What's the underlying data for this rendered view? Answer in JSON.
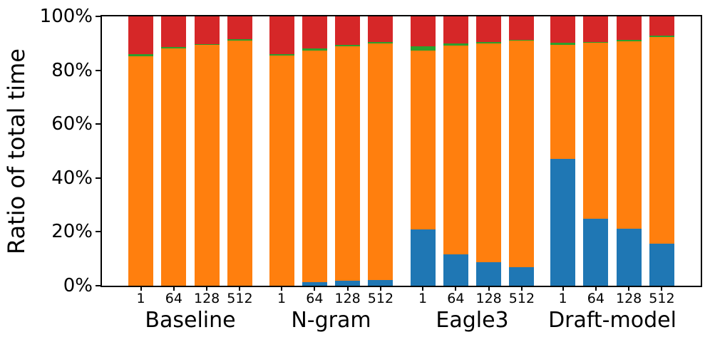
{
  "chart_data": {
    "type": "bar",
    "stacked": true,
    "title": "",
    "xlabel": "",
    "ylabel": "Ratio of total time",
    "ylim": [
      0,
      100
    ],
    "grid": false,
    "legend": false,
    "ytick_values": [
      0,
      20,
      40,
      60,
      80,
      100
    ],
    "ytick_labels": [
      "0%",
      "20%",
      "40%",
      "60%",
      "80%",
      "100%"
    ],
    "groups": [
      "Baseline",
      "N-gram",
      "Eagle3",
      "Draft-model"
    ],
    "bar_labels": [
      "1",
      "64",
      "128",
      "512"
    ],
    "series": [
      {
        "name": "blue-bottom-segment",
        "color": "#1f77b4",
        "values": [
          [
            0,
            0,
            0,
            0
          ],
          [
            0,
            1.3,
            1.9,
            2.0
          ],
          [
            21.0,
            11.7,
            8.7,
            7.0
          ],
          [
            47.0,
            24.8,
            21.3,
            15.5
          ]
        ]
      },
      {
        "name": "orange-middle-segment",
        "color": "#ff7f0e",
        "values": [
          [
            85.3,
            88.0,
            89.3,
            91.0
          ],
          [
            85.5,
            86.1,
            87.0,
            88.0
          ],
          [
            66.2,
            77.5,
            81.3,
            83.9
          ],
          [
            42.4,
            65.3,
            69.5,
            76.8
          ]
        ]
      },
      {
        "name": "green-thin-segment",
        "color": "#2ca02c",
        "values": [
          [
            0.8,
            0.7,
            0.5,
            0.5
          ],
          [
            0.6,
            0.7,
            0.5,
            0.5
          ],
          [
            1.7,
            0.7,
            0.5,
            0.5
          ],
          [
            0.9,
            0.5,
            0.4,
            0.5
          ]
        ]
      },
      {
        "name": "red-top-segment",
        "color": "#d62728",
        "values": [
          [
            13.9,
            11.3,
            10.2,
            8.5
          ],
          [
            13.9,
            11.9,
            10.6,
            9.5
          ],
          [
            11.1,
            10.1,
            9.5,
            8.6
          ],
          [
            9.7,
            9.4,
            8.8,
            7.2
          ]
        ]
      }
    ]
  }
}
